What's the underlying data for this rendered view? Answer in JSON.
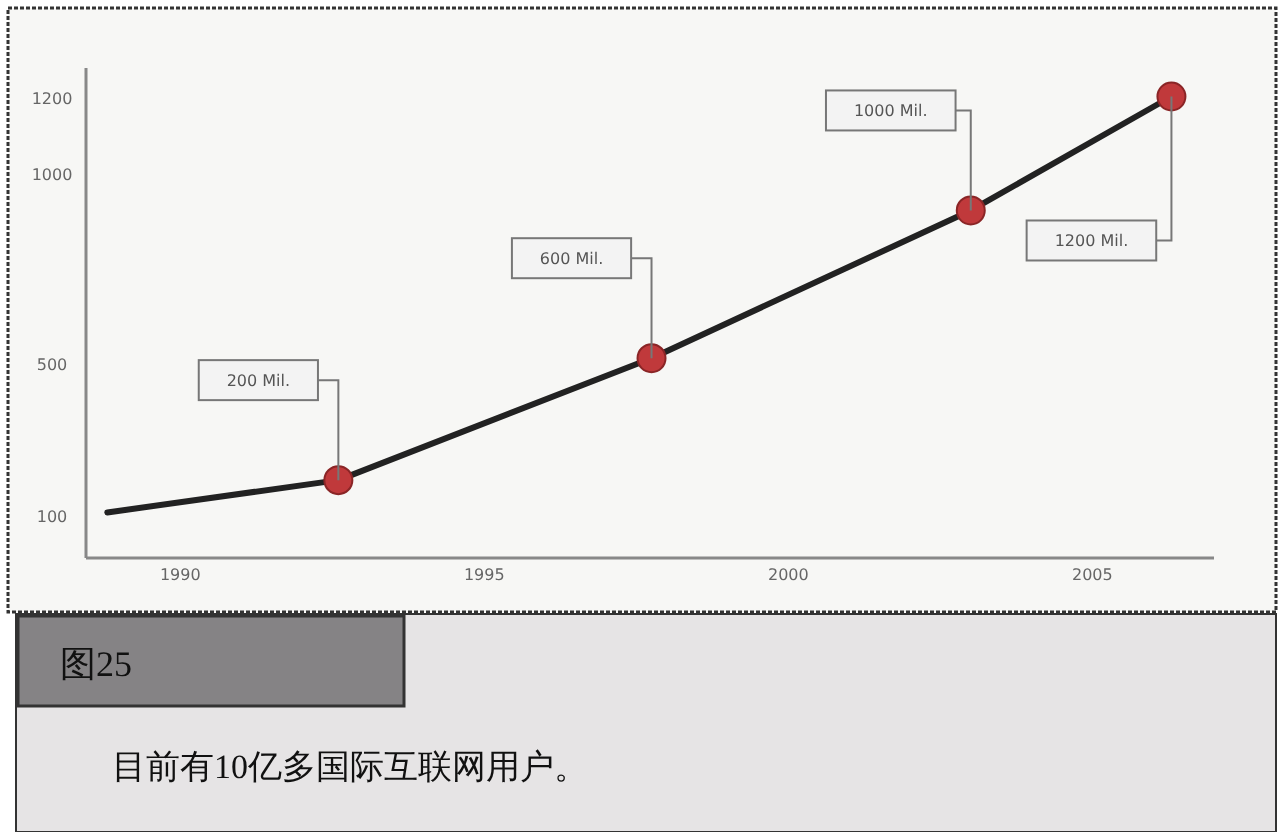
{
  "chart_data": {
    "type": "line",
    "title": "图25",
    "subtitle": "目前有10亿多国际互联网用户。",
    "series": [
      {
        "type": "line",
        "color": "#222222",
        "marker": "none",
        "x": [
          1988.8,
          1992.6,
          1997.75,
          2003.0,
          2006.3
        ],
        "values": [
          110,
          195,
          516,
          905,
          1205
        ]
      },
      {
        "type": "scatter",
        "color": "#c0393b",
        "marker": "circle",
        "x": [
          1992.6,
          1997.75,
          2003.0,
          2006.3
        ],
        "values": [
          195,
          516,
          905,
          1205
        ]
      }
    ],
    "annotations": [
      "200 Mil.",
      "600 Mil.",
      "1000 Mil.",
      "1200 Mil."
    ],
    "xlim": [
      1988.45,
      2007
    ],
    "ylim": [
      -10,
      1280
    ],
    "xticks": [
      1990,
      1995,
      2000,
      2005
    ],
    "yticks": [
      100,
      500,
      1000,
      1200
    ],
    "grid": false
  }
}
